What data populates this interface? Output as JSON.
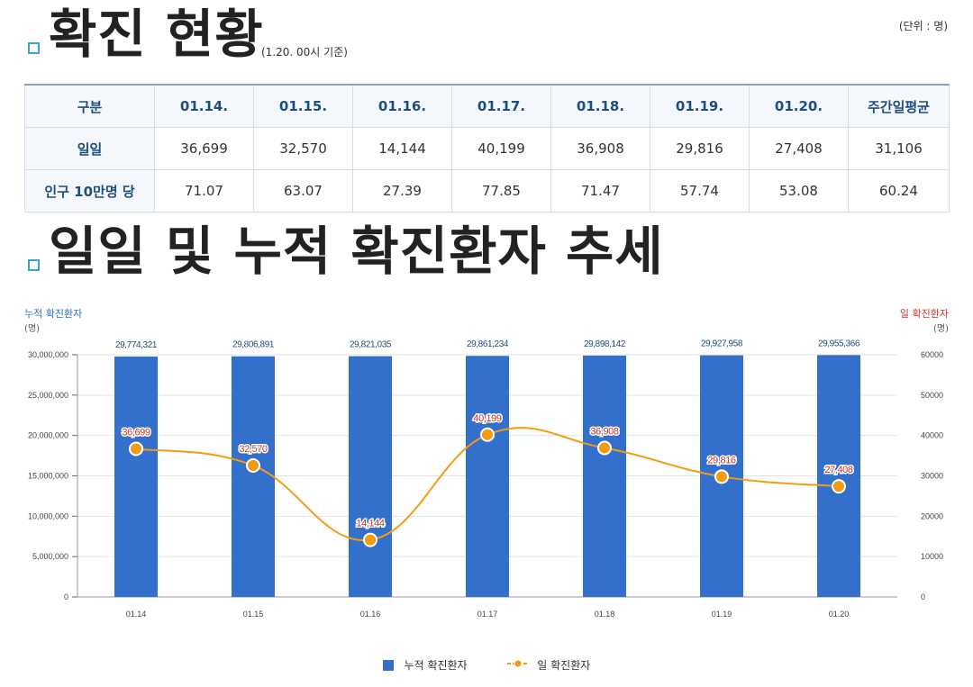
{
  "status": {
    "title": "확진 현황",
    "basis": "(1.20. 00시 기준)",
    "unit": "(단위 : 명)",
    "table": {
      "headers": [
        "구분",
        "01.14.",
        "01.15.",
        "01.16.",
        "01.17.",
        "01.18.",
        "01.19.",
        "01.20.",
        "주간일평균"
      ],
      "rows": [
        {
          "label": "일일",
          "values": [
            "36,699",
            "32,570",
            "14,144",
            "40,199",
            "36,908",
            "29,816",
            "27,408",
            "31,106"
          ]
        },
        {
          "label": "인구 10만명 당",
          "values": [
            "71.07",
            "63.07",
            "27.39",
            "77.85",
            "71.47",
            "57.74",
            "53.08",
            "60.24"
          ]
        }
      ]
    }
  },
  "trend": {
    "title": "일일 및 누적 확진환자 추세"
  },
  "chart_data": {
    "type": "bar",
    "categories": [
      "01.14",
      "01.15",
      "01.16",
      "01.17",
      "01.18",
      "01.19",
      "01.20"
    ],
    "series": [
      {
        "name": "누적 확진환자",
        "type": "bar",
        "axis": "left",
        "color": "#3370cc",
        "values": [
          29774321,
          29806891,
          29821035,
          29861234,
          29898142,
          29927958,
          29955366
        ],
        "labels": [
          "29,774,321",
          "29,806,891",
          "29,821,035",
          "29,861,234",
          "29,898,142",
          "29,927,958",
          "29,955,366"
        ]
      },
      {
        "name": "일 확진환자",
        "type": "line",
        "axis": "right",
        "color": "#f39c12",
        "values": [
          36699,
          32570,
          14144,
          40199,
          36908,
          29816,
          27408
        ],
        "labels": [
          "36,699",
          "32,570",
          "14,144",
          "40,199",
          "36,908",
          "29,816",
          "27,408"
        ]
      }
    ],
    "left_axis": {
      "title": "누적 확진환자",
      "unit": "(명)",
      "range": [
        0,
        30000000
      ],
      "ticks": [
        "0",
        "5,000,000",
        "10,000,000",
        "15,000,000",
        "20,000,000",
        "25,000,000",
        "30,000,000"
      ]
    },
    "right_axis": {
      "title": "일 확진환자",
      "unit": "(명)",
      "range": [
        0,
        60000
      ],
      "ticks": [
        "0",
        "10000",
        "20000",
        "30000",
        "40000",
        "50000",
        "60000"
      ]
    },
    "legend": [
      "누적 확진환자",
      "일 확진환자"
    ],
    "legend_position": "bottom"
  }
}
